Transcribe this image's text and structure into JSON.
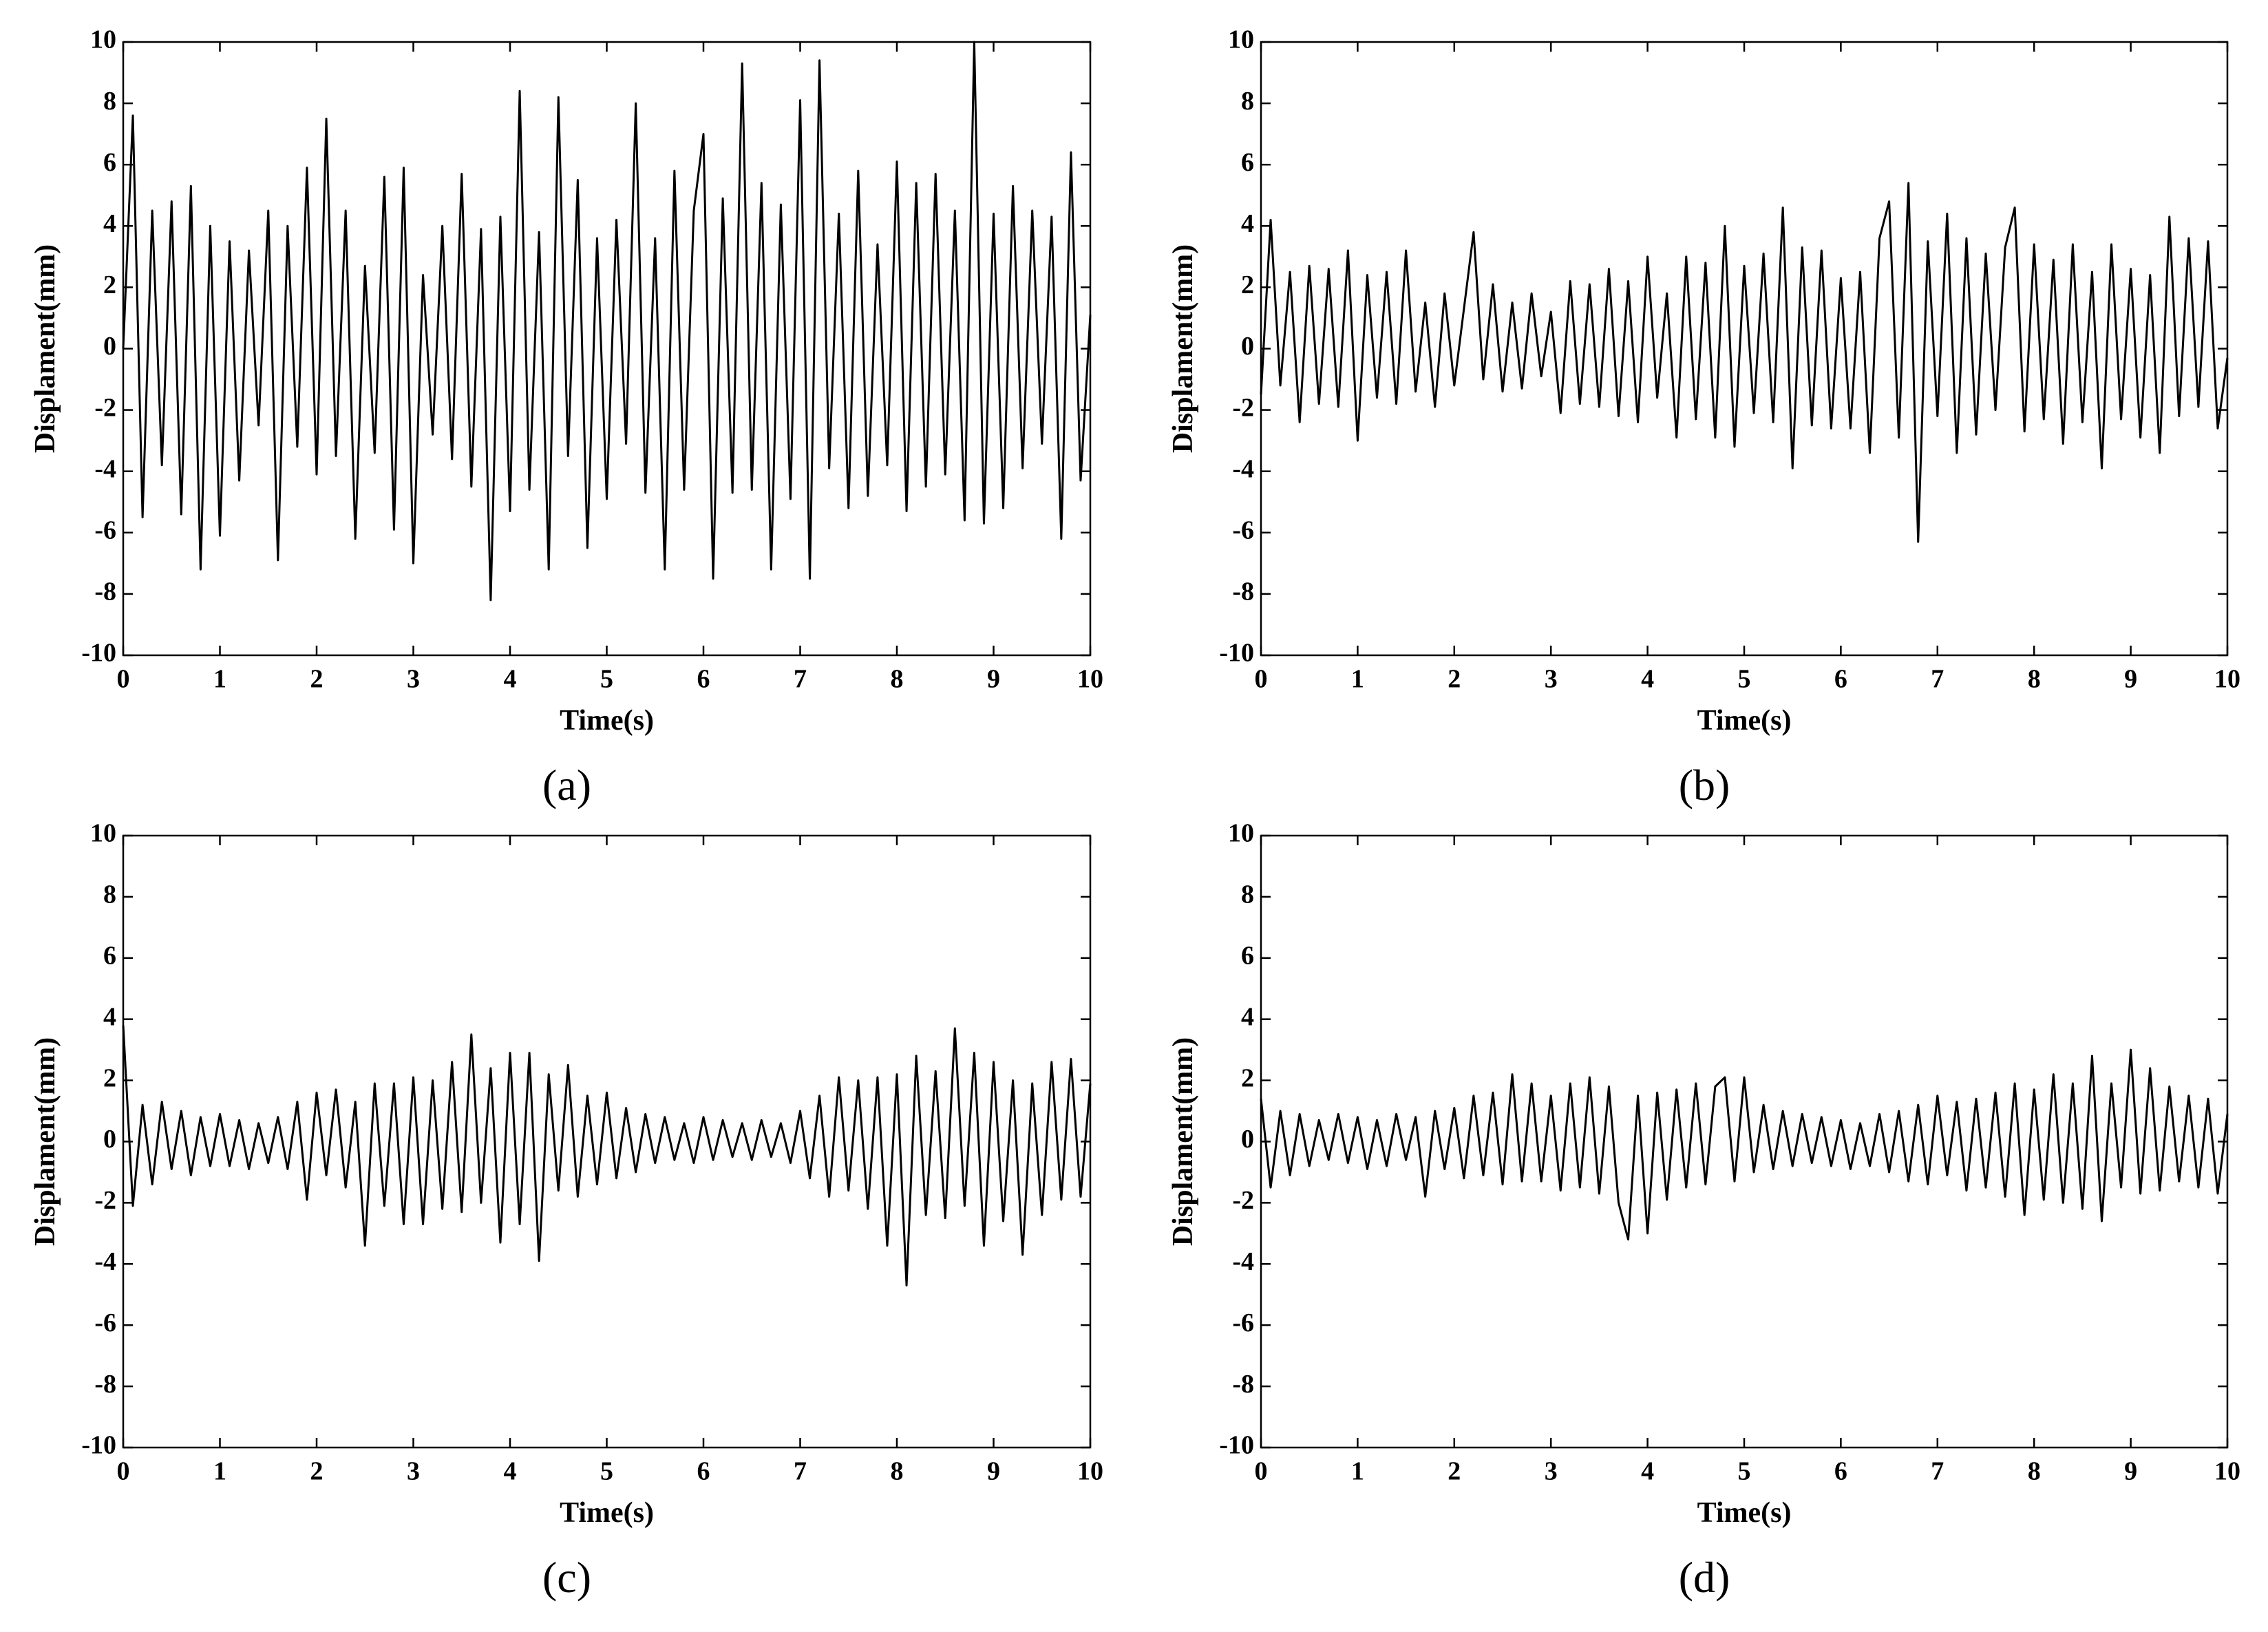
{
  "chart_data": [
    {
      "type": "line",
      "label": "(a)",
      "xlabel": "Time(s)",
      "ylabel": "Displament(mm)",
      "xlim": [
        0,
        10
      ],
      "ylim": [
        -10,
        10
      ],
      "xticks": [
        0,
        1,
        2,
        3,
        4,
        5,
        6,
        7,
        8,
        9,
        10
      ],
      "yticks": [
        -10,
        -8,
        -6,
        -4,
        -2,
        0,
        2,
        4,
        6,
        8,
        10
      ],
      "x": [
        0,
        0.1,
        0.2,
        0.3,
        0.4,
        0.5,
        0.6,
        0.7,
        0.8,
        0.9,
        1,
        1.1,
        1.2,
        1.3,
        1.4,
        1.5,
        1.6,
        1.7,
        1.8,
        1.9,
        2,
        2.1,
        2.2,
        2.3,
        2.4,
        2.5,
        2.6,
        2.7,
        2.8,
        2.9,
        3,
        3.1,
        3.2,
        3.3,
        3.4,
        3.5,
        3.6,
        3.7,
        3.8,
        3.9,
        4,
        4.1,
        4.2,
        4.3,
        4.4,
        4.5,
        4.6,
        4.7,
        4.8,
        4.9,
        5,
        5.1,
        5.2,
        5.3,
        5.4,
        5.5,
        5.6,
        5.7,
        5.8,
        5.9,
        6,
        6.1,
        6.2,
        6.3,
        6.4,
        6.5,
        6.6,
        6.7,
        6.8,
        6.9,
        7,
        7.1,
        7.2,
        7.3,
        7.4,
        7.5,
        7.6,
        7.7,
        7.8,
        7.9,
        8,
        8.1,
        8.2,
        8.3,
        8.4,
        8.5,
        8.6,
        8.7,
        8.8,
        8.9,
        9,
        9.1,
        9.2,
        9.3,
        9.4,
        9.5,
        9.6,
        9.7,
        9.8,
        9.9,
        10
      ],
      "series": [
        {
          "color": "#000000",
          "values": [
            0,
            7.6,
            -5.5,
            4.5,
            -3.8,
            4.8,
            -5.4,
            5.3,
            -7.2,
            4.0,
            -6.1,
            3.5,
            -4.3,
            3.2,
            -2.5,
            4.5,
            -6.9,
            4.0,
            -3.2,
            5.9,
            -4.1,
            7.5,
            -3.5,
            4.5,
            -6.2,
            2.7,
            -3.4,
            5.6,
            -5.9,
            5.9,
            -7.0,
            2.4,
            -2.8,
            4.0,
            -3.6,
            5.7,
            -4.5,
            3.9,
            -8.2,
            4.3,
            -5.3,
            8.4,
            -4.6,
            3.8,
            -7.2,
            8.2,
            -3.5,
            5.5,
            -6.5,
            3.6,
            -4.9,
            4.2,
            -3.1,
            8.0,
            -4.7,
            3.6,
            -7.2,
            5.8,
            -4.6,
            4.5,
            7.0,
            -7.5,
            4.9,
            -4.7,
            9.3,
            -4.6,
            5.4,
            -7.2,
            4.7,
            -4.9,
            8.1,
            -7.5,
            9.4,
            -3.9,
            4.4,
            -5.2,
            5.8,
            -4.8,
            3.4,
            -3.8,
            6.1,
            -5.3,
            5.4,
            -4.5,
            5.7,
            -4.1,
            4.5,
            -5.6,
            10,
            -5.7,
            4.4,
            -5.2,
            5.3,
            -3.9,
            4.5,
            -3.1,
            4.3,
            -6.2,
            6.4,
            -4.3,
            1.1
          ]
        }
      ]
    },
    {
      "type": "line",
      "label": "(b)",
      "xlabel": "Time(s)",
      "ylabel": "Displament(mm)",
      "xlim": [
        0,
        10
      ],
      "ylim": [
        -10,
        10
      ],
      "xticks": [
        0,
        1,
        2,
        3,
        4,
        5,
        6,
        7,
        8,
        9,
        10
      ],
      "yticks": [
        -10,
        -8,
        -6,
        -4,
        -2,
        0,
        2,
        4,
        6,
        8,
        10
      ],
      "x": [
        0,
        0.1,
        0.2,
        0.3,
        0.4,
        0.5,
        0.6,
        0.7,
        0.8,
        0.9,
        1,
        1.1,
        1.2,
        1.3,
        1.4,
        1.5,
        1.6,
        1.7,
        1.8,
        1.9,
        2,
        2.1,
        2.2,
        2.3,
        2.4,
        2.5,
        2.6,
        2.7,
        2.8,
        2.9,
        3,
        3.1,
        3.2,
        3.3,
        3.4,
        3.5,
        3.6,
        3.7,
        3.8,
        3.9,
        4,
        4.1,
        4.2,
        4.3,
        4.4,
        4.5,
        4.6,
        4.7,
        4.8,
        4.9,
        5,
        5.1,
        5.2,
        5.3,
        5.4,
        5.5,
        5.6,
        5.7,
        5.8,
        5.9,
        6,
        6.1,
        6.2,
        6.3,
        6.4,
        6.5,
        6.6,
        6.7,
        6.8,
        6.9,
        7,
        7.1,
        7.2,
        7.3,
        7.4,
        7.5,
        7.6,
        7.7,
        7.8,
        7.9,
        8,
        8.1,
        8.2,
        8.3,
        8.4,
        8.5,
        8.6,
        8.7,
        8.8,
        8.9,
        9,
        9.1,
        9.2,
        9.3,
        9.4,
        9.5,
        9.6,
        9.7,
        9.8,
        9.9,
        10
      ],
      "series": [
        {
          "color": "#000000",
          "values": [
            -1.5,
            4.2,
            -1.2,
            2.5,
            -2.4,
            2.7,
            -1.8,
            2.6,
            -1.9,
            3.2,
            -3.0,
            2.4,
            -1.6,
            2.5,
            -1.8,
            3.2,
            -1.4,
            1.5,
            -1.9,
            1.8,
            -1.2,
            1.3,
            3.8,
            -1.0,
            2.1,
            -1.4,
            1.5,
            -1.3,
            1.8,
            -0.9,
            1.2,
            -2.1,
            2.2,
            -1.8,
            2.1,
            -1.9,
            2.6,
            -2.2,
            2.2,
            -2.4,
            3.0,
            -1.6,
            1.8,
            -2.9,
            3.0,
            -2.3,
            2.8,
            -2.9,
            4.0,
            -3.2,
            2.7,
            -2.1,
            3.1,
            -2.4,
            4.6,
            -3.9,
            3.3,
            -2.5,
            3.2,
            -2.6,
            2.3,
            -2.6,
            2.5,
            -3.4,
            3.6,
            4.8,
            -2.9,
            5.4,
            -6.3,
            3.5,
            -2.2,
            4.4,
            -3.4,
            3.6,
            -2.8,
            3.1,
            -2.0,
            3.3,
            4.6,
            -2.7,
            3.4,
            -2.3,
            2.9,
            -3.1,
            3.4,
            -2.4,
            2.5,
            -3.9,
            3.4,
            -2.3,
            2.6,
            -2.9,
            2.4,
            -3.4,
            4.3,
            -2.2,
            3.6,
            -1.9,
            3.5,
            -2.6,
            -0.3
          ]
        }
      ]
    },
    {
      "type": "line",
      "label": "(c)",
      "xlabel": "Time(s)",
      "ylabel": "Displament(mm)",
      "xlim": [
        0,
        10
      ],
      "ylim": [
        -10,
        10
      ],
      "xticks": [
        0,
        1,
        2,
        3,
        4,
        5,
        6,
        7,
        8,
        9,
        10
      ],
      "yticks": [
        -10,
        -8,
        -6,
        -4,
        -2,
        0,
        2,
        4,
        6,
        8,
        10
      ],
      "x": [
        0,
        0.1,
        0.2,
        0.3,
        0.4,
        0.5,
        0.6,
        0.7,
        0.8,
        0.9,
        1,
        1.1,
        1.2,
        1.3,
        1.4,
        1.5,
        1.6,
        1.7,
        1.8,
        1.9,
        2,
        2.1,
        2.2,
        2.3,
        2.4,
        2.5,
        2.6,
        2.7,
        2.8,
        2.9,
        3,
        3.1,
        3.2,
        3.3,
        3.4,
        3.5,
        3.6,
        3.7,
        3.8,
        3.9,
        4,
        4.1,
        4.2,
        4.3,
        4.4,
        4.5,
        4.6,
        4.7,
        4.8,
        4.9,
        5,
        5.1,
        5.2,
        5.3,
        5.4,
        5.5,
        5.6,
        5.7,
        5.8,
        5.9,
        6,
        6.1,
        6.2,
        6.3,
        6.4,
        6.5,
        6.6,
        6.7,
        6.8,
        6.9,
        7,
        7.1,
        7.2,
        7.3,
        7.4,
        7.5,
        7.6,
        7.7,
        7.8,
        7.9,
        8,
        8.1,
        8.2,
        8.3,
        8.4,
        8.5,
        8.6,
        8.7,
        8.8,
        8.9,
        9,
        9.1,
        9.2,
        9.3,
        9.4,
        9.5,
        9.6,
        9.7,
        9.8,
        9.9,
        10
      ],
      "series": [
        {
          "color": "#000000",
          "values": [
            3.8,
            -2.1,
            1.2,
            -1.4,
            1.3,
            -0.9,
            1.0,
            -1.1,
            0.8,
            -0.8,
            0.9,
            -0.8,
            0.7,
            -0.9,
            0.6,
            -0.7,
            0.8,
            -0.9,
            1.3,
            -1.9,
            1.6,
            -1.1,
            1.7,
            -1.5,
            1.3,
            -3.4,
            1.9,
            -2.1,
            1.9,
            -2.7,
            2.1,
            -2.7,
            2.0,
            -2.2,
            2.6,
            -2.3,
            3.5,
            -2.0,
            2.4,
            -3.3,
            2.9,
            -2.7,
            2.9,
            -3.9,
            2.2,
            -1.6,
            2.5,
            -1.8,
            1.5,
            -1.4,
            1.6,
            -1.2,
            1.1,
            -1.0,
            0.9,
            -0.7,
            0.8,
            -0.6,
            0.6,
            -0.7,
            0.8,
            -0.6,
            0.7,
            -0.5,
            0.6,
            -0.6,
            0.7,
            -0.5,
            0.6,
            -0.7,
            1.0,
            -1.2,
            1.5,
            -1.8,
            2.1,
            -1.6,
            2.0,
            -2.2,
            2.1,
            -3.4,
            2.2,
            -4.7,
            2.8,
            -2.4,
            2.3,
            -2.5,
            3.7,
            -2.1,
            2.9,
            -3.4,
            2.6,
            -2.6,
            2.0,
            -3.7,
            1.9,
            -2.4,
            2.6,
            -1.9,
            2.7,
            -1.8,
            1.9
          ]
        }
      ]
    },
    {
      "type": "line",
      "label": "(d)",
      "xlabel": "Time(s)",
      "ylabel": "Displament(mm)",
      "xlim": [
        0,
        10
      ],
      "ylim": [
        -10,
        10
      ],
      "xticks": [
        0,
        1,
        2,
        3,
        4,
        5,
        6,
        7,
        8,
        9,
        10
      ],
      "yticks": [
        -10,
        -8,
        -6,
        -4,
        -2,
        0,
        2,
        4,
        6,
        8,
        10
      ],
      "x": [
        0,
        0.1,
        0.2,
        0.3,
        0.4,
        0.5,
        0.6,
        0.7,
        0.8,
        0.9,
        1,
        1.1,
        1.2,
        1.3,
        1.4,
        1.5,
        1.6,
        1.7,
        1.8,
        1.9,
        2,
        2.1,
        2.2,
        2.3,
        2.4,
        2.5,
        2.6,
        2.7,
        2.8,
        2.9,
        3,
        3.1,
        3.2,
        3.3,
        3.4,
        3.5,
        3.6,
        3.7,
        3.8,
        3.9,
        4,
        4.1,
        4.2,
        4.3,
        4.4,
        4.5,
        4.6,
        4.7,
        4.8,
        4.9,
        5,
        5.1,
        5.2,
        5.3,
        5.4,
        5.5,
        5.6,
        5.7,
        5.8,
        5.9,
        6,
        6.1,
        6.2,
        6.3,
        6.4,
        6.5,
        6.6,
        6.7,
        6.8,
        6.9,
        7,
        7.1,
        7.2,
        7.3,
        7.4,
        7.5,
        7.6,
        7.7,
        7.8,
        7.9,
        8,
        8.1,
        8.2,
        8.3,
        8.4,
        8.5,
        8.6,
        8.7,
        8.8,
        8.9,
        9,
        9.1,
        9.2,
        9.3,
        9.4,
        9.5,
        9.6,
        9.7,
        9.8,
        9.9,
        10
      ],
      "series": [
        {
          "color": "#000000",
          "values": [
            1.4,
            -1.5,
            1.0,
            -1.1,
            0.9,
            -0.8,
            0.7,
            -0.6,
            0.9,
            -0.7,
            0.8,
            -0.9,
            0.7,
            -0.8,
            0.9,
            -0.6,
            0.8,
            -1.8,
            1.0,
            -0.9,
            1.1,
            -1.2,
            1.5,
            -1.1,
            1.6,
            -1.4,
            2.2,
            -1.3,
            1.9,
            -1.3,
            1.5,
            -1.6,
            1.9,
            -1.5,
            2.1,
            -1.7,
            1.8,
            -2.0,
            -3.2,
            1.5,
            -3.0,
            1.6,
            -1.9,
            1.7,
            -1.5,
            1.9,
            -1.4,
            1.8,
            2.1,
            -1.3,
            2.1,
            -1.0,
            1.2,
            -0.9,
            1.0,
            -0.8,
            0.9,
            -0.7,
            0.8,
            -0.8,
            0.7,
            -0.9,
            0.6,
            -0.8,
            0.9,
            -1.0,
            1.0,
            -1.3,
            1.2,
            -1.4,
            1.5,
            -1.1,
            1.3,
            -1.6,
            1.4,
            -1.5,
            1.6,
            -1.8,
            1.9,
            -2.4,
            1.7,
            -1.9,
            2.2,
            -2.0,
            1.9,
            -2.2,
            2.8,
            -2.6,
            1.9,
            -1.5,
            3.0,
            -1.7,
            2.4,
            -1.6,
            1.8,
            -1.3,
            1.5,
            -1.5,
            1.4,
            -1.7,
            0.9
          ]
        }
      ]
    }
  ]
}
